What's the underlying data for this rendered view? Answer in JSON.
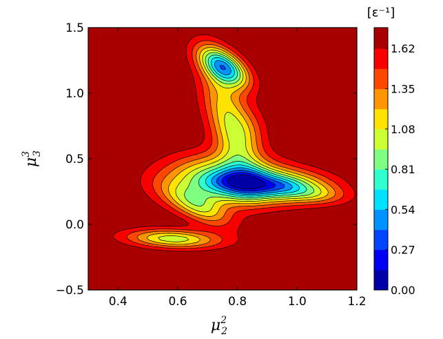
{
  "chart_data": {
    "type": "contour",
    "unit_label": "[ε⁻¹]",
    "xlabel": {
      "base": "μ",
      "sup": "2",
      "sub": "2"
    },
    "ylabel": {
      "base": "μ",
      "sup": "3",
      "sub": "3"
    },
    "xlim": [
      0.3,
      1.2
    ],
    "ylim": [
      -0.5,
      1.5
    ],
    "x_ticks": [
      0.4,
      0.6,
      0.8,
      1.0,
      1.2
    ],
    "x_tick_labels": [
      "0.4",
      "0.6",
      "0.8",
      "1.0",
      "1.2"
    ],
    "y_ticks": [
      -0.5,
      0.0,
      0.5,
      1.0,
      1.5
    ],
    "y_tick_labels": [
      "−0.5",
      "0.0",
      "0.5",
      "1.0",
      "1.5"
    ],
    "colorbar": {
      "min": 0.0,
      "max": 1.76,
      "ticks": [
        0.0,
        0.27,
        0.54,
        0.81,
        1.08,
        1.35,
        1.62
      ],
      "tick_labels": [
        "0.00",
        "0.27",
        "0.54",
        "0.81",
        "1.08",
        "1.35",
        "1.62"
      ],
      "levels": [
        0.0,
        0.135,
        0.27,
        0.405,
        0.54,
        0.675,
        0.81,
        0.945,
        1.08,
        1.215,
        1.35,
        1.485,
        1.62,
        1.76
      ],
      "colormap": "jet"
    },
    "background_value": 1.76,
    "minima": [
      {
        "x": 0.74,
        "y": 1.27,
        "value": 0.05
      },
      {
        "x": 0.74,
        "y": 0.35,
        "value": 0.85
      },
      {
        "x": 0.94,
        "y": 0.3,
        "value": 0.92
      },
      {
        "x": 0.58,
        "y": -0.11,
        "value": 1.02
      }
    ]
  }
}
